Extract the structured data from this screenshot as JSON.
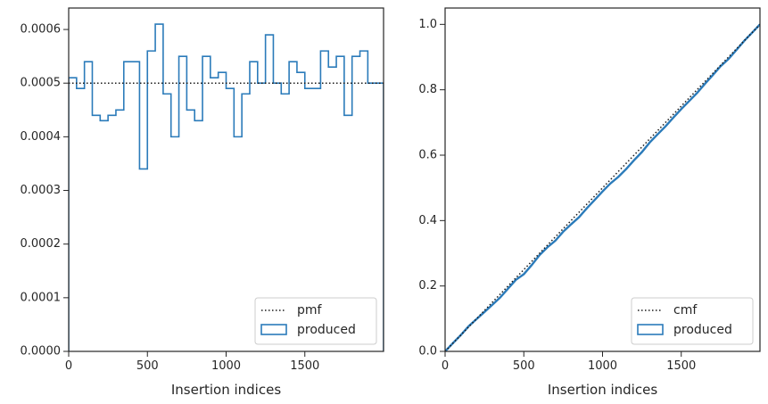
{
  "chart_data": [
    {
      "type": "step",
      "xlabel": "Insertion indices",
      "ylabel": "",
      "xlim": [
        0,
        2000
      ],
      "ylim": [
        0,
        0.00064
      ],
      "xticks": [
        0,
        500,
        1000,
        1500
      ],
      "xtick_labels": [
        "0",
        "500",
        "1000",
        "1500"
      ],
      "yticks": [
        0,
        0.0001,
        0.0002,
        0.0003,
        0.0004,
        0.0005,
        0.0006
      ],
      "ytick_labels": [
        "0.0000",
        "0.0001",
        "0.0002",
        "0.0003",
        "0.0004",
        "0.0005",
        "0.0006"
      ],
      "grid": false,
      "legend_position": "lower-right",
      "reference": {
        "name": "pmf",
        "value": 0.0005,
        "style": "dotted",
        "color": "#1a1a1a"
      },
      "series": [
        {
          "name": "produced",
          "color": "#2b7bba",
          "bin_edges": [
            0,
            50,
            100,
            150,
            200,
            250,
            300,
            350,
            400,
            450,
            500,
            550,
            600,
            650,
            700,
            750,
            800,
            850,
            900,
            950,
            1000,
            1050,
            1100,
            1150,
            1200,
            1250,
            1300,
            1350,
            1400,
            1450,
            1500,
            1550,
            1600,
            1650,
            1700,
            1750,
            1800,
            1850,
            1900,
            1950,
            2000
          ],
          "values": [
            0.00051,
            0.00049,
            0.00054,
            0.00044,
            0.00043,
            0.00044,
            0.00045,
            0.00054,
            0.00054,
            0.00034,
            0.00056,
            0.00061,
            0.00048,
            0.0004,
            0.00055,
            0.00045,
            0.00043,
            0.00055,
            0.00051,
            0.00052,
            0.00049,
            0.0004,
            0.00048,
            0.00054,
            0.0005,
            0.00059,
            0.0005,
            0.00048,
            0.00054,
            0.00052,
            0.00049,
            0.00049,
            0.00056,
            0.00053,
            0.00055,
            0.00044,
            0.00055,
            0.00056,
            0.0005,
            0.0005
          ]
        }
      ]
    },
    {
      "type": "line",
      "xlabel": "Insertion indices",
      "ylabel": "",
      "xlim": [
        0,
        2000
      ],
      "ylim": [
        0,
        1.05
      ],
      "xticks": [
        0,
        500,
        1000,
        1500
      ],
      "xtick_labels": [
        "0",
        "500",
        "1000",
        "1500"
      ],
      "yticks": [
        0,
        0.2,
        0.4,
        0.6,
        0.8,
        1.0
      ],
      "ytick_labels": [
        "0.0",
        "0.2",
        "0.4",
        "0.6",
        "0.8",
        "1.0"
      ],
      "grid": false,
      "legend_position": "lower-right",
      "reference": {
        "name": "cmf",
        "x": [
          0,
          2000
        ],
        "y": [
          0,
          1.0
        ],
        "style": "dotted",
        "color": "#1a1a1a"
      },
      "series": [
        {
          "name": "produced",
          "color": "#2b7bba",
          "x": [
            0,
            50,
            100,
            150,
            200,
            250,
            300,
            350,
            400,
            450,
            500,
            550,
            600,
            650,
            700,
            750,
            800,
            850,
            900,
            950,
            1000,
            1050,
            1100,
            1150,
            1200,
            1250,
            1300,
            1350,
            1400,
            1450,
            1500,
            1550,
            1600,
            1650,
            1700,
            1750,
            1800,
            1850,
            1900,
            1950,
            2000
          ],
          "y": [
            0,
            0.0255,
            0.05,
            0.077,
            0.099,
            0.1205,
            0.1425,
            0.165,
            0.192,
            0.219,
            0.236,
            0.264,
            0.2945,
            0.3185,
            0.3385,
            0.366,
            0.3885,
            0.41,
            0.4375,
            0.463,
            0.489,
            0.5135,
            0.5335,
            0.5575,
            0.5845,
            0.6095,
            0.639,
            0.664,
            0.688,
            0.715,
            0.741,
            0.7655,
            0.79,
            0.818,
            0.8445,
            0.872,
            0.894,
            0.9215,
            0.9495,
            0.9745,
            1.0
          ]
        }
      ]
    }
  ]
}
